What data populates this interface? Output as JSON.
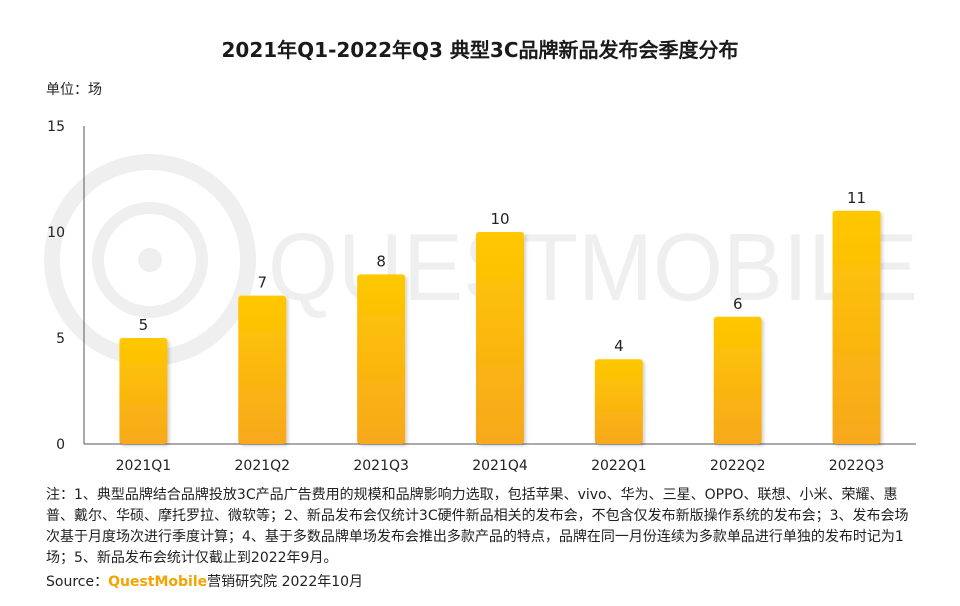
{
  "chart_data": {
    "type": "bar",
    "title": "2021年Q1-2022年Q3 典型3C品牌新品发布会季度分布",
    "unit_label": "单位：场",
    "categories": [
      "2021Q1",
      "2021Q2",
      "2021Q3",
      "2021Q4",
      "2022Q1",
      "2022Q2",
      "2022Q3"
    ],
    "values": [
      5,
      7,
      8,
      10,
      4,
      6,
      11
    ],
    "yticks": [
      0,
      5,
      10,
      15
    ],
    "ylim": [
      0,
      15
    ],
    "xlabel": "",
    "ylabel": "场",
    "grid": false,
    "bar_color_top": "#ffc800",
    "bar_color_bottom": "#f7a81c"
  },
  "watermark": "QUESTMOBILE",
  "note": "注：1、典型品牌结合品牌投放3C产品广告费用的规模和品牌影响力选取，包括苹果、vivo、华为、三星、OPPO、联想、小米、荣耀、惠普、戴尔、华硕、摩托罗拉、微软等；2、新品发布会仅统计3C硬件新品相关的发布会，不包含仅发布新版操作系统的发布会；3、发布会场次基于月度场次进行季度计算；4、基于多数品牌单场发布会推出多款产品的特点，品牌在同一月份连续为多款单品进行单独的发布时记为1场；5、新品发布会统计仅截止到2022年9月。",
  "source": {
    "prefix": "Source：",
    "brand": "QuestMobile",
    "suffix": "营销研究院 2022年10月"
  }
}
